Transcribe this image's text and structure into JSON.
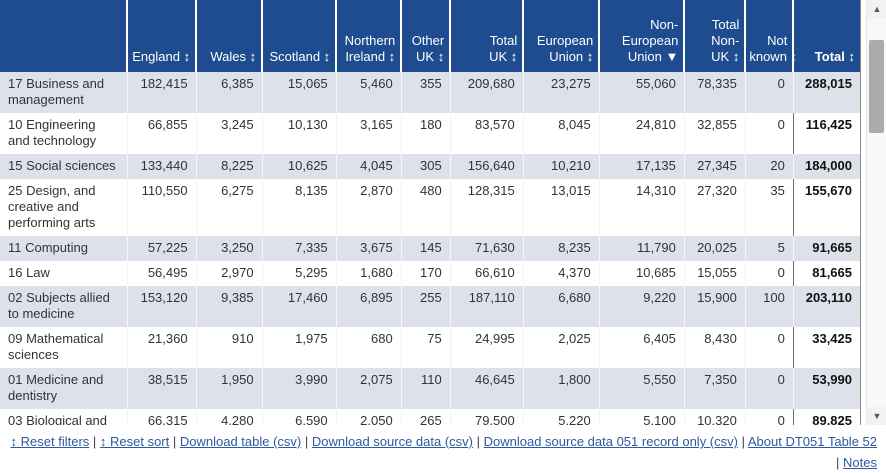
{
  "colors": {
    "header_bg": "#1e4c8e",
    "row_shade": "#dde2ea",
    "link": "#2d5aa0",
    "total_divider": "#6e6e6e"
  },
  "table": {
    "columns": [
      {
        "key": "england",
        "label": "England",
        "lines": [
          "England ↕"
        ],
        "sort": "sortable"
      },
      {
        "key": "wales",
        "label": "Wales",
        "lines": [
          "Wales ↕"
        ],
        "sort": "sortable"
      },
      {
        "key": "scotland",
        "label": "Scotland",
        "lines": [
          "Scotland ↕"
        ],
        "sort": "sortable"
      },
      {
        "key": "northern-ireland",
        "label": "Northern Ireland",
        "lines": [
          "Northern",
          "Ireland ↕"
        ],
        "sort": "sortable"
      },
      {
        "key": "other-uk",
        "label": "Other UK",
        "lines": [
          "Other",
          "UK ↕"
        ],
        "sort": "sortable"
      },
      {
        "key": "total-uk",
        "label": "Total UK",
        "lines": [
          "Total",
          "UK ↕"
        ],
        "sort": "sortable"
      },
      {
        "key": "european-union",
        "label": "European Union",
        "lines": [
          "European",
          "Union ↕"
        ],
        "sort": "sortable"
      },
      {
        "key": "non-european-union",
        "label": "Non-European Union",
        "lines": [
          "Non-",
          "European",
          "Union ▼"
        ],
        "sort": "sorted-desc"
      },
      {
        "key": "total-non-uk",
        "label": "Total Non-UK",
        "lines": [
          "Total",
          "Non-",
          "UK ↕"
        ],
        "sort": "sortable"
      },
      {
        "key": "not-known",
        "label": "Not known",
        "lines": [
          "Not",
          "known ↕"
        ],
        "sort": "sortable"
      },
      {
        "key": "total",
        "label": "Total",
        "lines": [
          "Total ↕"
        ],
        "sort": "sortable"
      }
    ],
    "rows": [
      {
        "label": "17 Business and management",
        "values": [
          "182,415",
          "6,385",
          "15,065",
          "5,460",
          "355",
          "209,680",
          "23,275",
          "55,060",
          "78,335",
          "0",
          "288,015"
        ]
      },
      {
        "label": "10 Engineering and technology",
        "values": [
          "66,855",
          "3,245",
          "10,130",
          "3,165",
          "180",
          "83,570",
          "8,045",
          "24,810",
          "32,855",
          "0",
          "116,425"
        ]
      },
      {
        "label": "15 Social sciences",
        "values": [
          "133,440",
          "8,225",
          "10,625",
          "4,045",
          "305",
          "156,640",
          "10,210",
          "17,135",
          "27,345",
          "20",
          "184,000"
        ]
      },
      {
        "label": "25 Design, and creative and performing arts",
        "values": [
          "110,550",
          "6,275",
          "8,135",
          "2,870",
          "480",
          "128,315",
          "13,015",
          "14,310",
          "27,320",
          "35",
          "155,670"
        ]
      },
      {
        "label": "11 Computing",
        "values": [
          "57,225",
          "3,250",
          "7,335",
          "3,675",
          "145",
          "71,630",
          "8,235",
          "11,790",
          "20,025",
          "5",
          "91,665"
        ]
      },
      {
        "label": "16 Law",
        "values": [
          "56,495",
          "2,970",
          "5,295",
          "1,680",
          "170",
          "66,610",
          "4,370",
          "10,685",
          "15,055",
          "0",
          "81,665"
        ]
      },
      {
        "label": "02 Subjects allied to medicine",
        "values": [
          "153,120",
          "9,385",
          "17,460",
          "6,895",
          "255",
          "187,110",
          "6,680",
          "9,220",
          "15,900",
          "100",
          "203,110"
        ]
      },
      {
        "label": "09 Mathematical sciences",
        "values": [
          "21,360",
          "910",
          "1,975",
          "680",
          "75",
          "24,995",
          "2,025",
          "6,405",
          "8,430",
          "0",
          "33,425"
        ]
      },
      {
        "label": "01 Medicine and dentistry",
        "values": [
          "38,515",
          "1,950",
          "3,990",
          "2,075",
          "110",
          "46,645",
          "1,800",
          "5,550",
          "7,350",
          "0",
          "53,990"
        ]
      },
      {
        "label": "03 Biological and",
        "values": [
          "66,315",
          "4,280",
          "6,590",
          "2,050",
          "265",
          "79,500",
          "5,220",
          "5,100",
          "10,320",
          "0",
          "89,825"
        ]
      }
    ]
  },
  "footer": {
    "separator": "|",
    "links": [
      {
        "name": "reset-filters",
        "label": "↕ Reset filters"
      },
      {
        "name": "reset-sort",
        "label": "↕ Reset sort"
      },
      {
        "name": "download-table-csv",
        "label": "Download table (csv)"
      },
      {
        "name": "download-source-data-csv",
        "label": "Download source data (csv)"
      },
      {
        "name": "download-source-data-051",
        "label": "Download source data 051 record only (csv)"
      },
      {
        "name": "about-dt051-table-52",
        "label": "About DT051 Table 52"
      },
      {
        "name": "notes",
        "label": "Notes"
      }
    ]
  },
  "scrollbar": {
    "up_glyph": "▲",
    "down_glyph": "▼"
  }
}
